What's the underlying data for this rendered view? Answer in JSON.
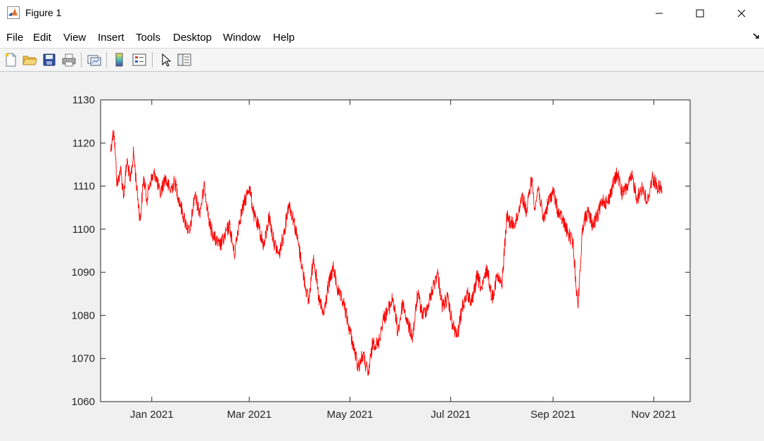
{
  "window": {
    "title": "Figure 1",
    "controls": [
      "minimize",
      "maximize",
      "close"
    ]
  },
  "menu": {
    "items": [
      "File",
      "Edit",
      "View",
      "Insert",
      "Tools",
      "Desktop",
      "Window",
      "Help"
    ]
  },
  "toolbar": {
    "buttons": [
      "new-figure-icon",
      "open-file-icon",
      "save-icon",
      "print-icon",
      "link-plot-icon",
      "colorbar-icon",
      "legend-icon",
      "pointer-icon",
      "property-inspector-icon"
    ]
  },
  "chart_data": {
    "type": "line",
    "title": "",
    "xlabel": "",
    "ylabel": "",
    "line_color": "#ff0000",
    "grid": false,
    "xlim": [
      "2020-12-01",
      "2021-11-23"
    ],
    "ylim": [
      1060,
      1130
    ],
    "x_ticks": [
      {
        "date": "2021-01-01",
        "label": "Jan 2021"
      },
      {
        "date": "2021-03-01",
        "label": "Mar 2021"
      },
      {
        "date": "2021-05-01",
        "label": "May 2021"
      },
      {
        "date": "2021-07-01",
        "label": "Jul 2021"
      },
      {
        "date": "2021-09-01",
        "label": "Sep 2021"
      },
      {
        "date": "2021-11-01",
        "label": "Nov 2021"
      }
    ],
    "y_ticks": [
      1060,
      1070,
      1080,
      1090,
      1100,
      1110,
      1120,
      1130
    ],
    "series": [
      {
        "x": [
          "2020-12-07",
          "2020-12-08",
          "2020-12-09",
          "2020-12-10",
          "2020-12-11",
          "2020-12-13",
          "2020-12-15",
          "2020-12-17",
          "2020-12-19",
          "2020-12-21",
          "2020-12-23",
          "2020-12-25",
          "2020-12-27",
          "2020-12-29",
          "2020-12-31",
          "2021-01-03",
          "2021-01-06",
          "2021-01-09",
          "2021-01-12",
          "2021-01-15",
          "2021-01-18",
          "2021-01-21",
          "2021-01-24",
          "2021-01-27",
          "2021-01-30",
          "2021-02-02",
          "2021-02-05",
          "2021-02-08",
          "2021-02-11",
          "2021-02-14",
          "2021-02-17",
          "2021-02-20",
          "2021-02-23",
          "2021-02-26",
          "2021-03-01",
          "2021-03-04",
          "2021-03-07",
          "2021-03-10",
          "2021-03-13",
          "2021-03-16",
          "2021-03-19",
          "2021-03-22",
          "2021-03-25",
          "2021-03-28",
          "2021-03-31",
          "2021-04-03",
          "2021-04-06",
          "2021-04-09",
          "2021-04-12",
          "2021-04-15",
          "2021-04-18",
          "2021-04-21",
          "2021-04-24",
          "2021-04-27",
          "2021-04-30",
          "2021-05-03",
          "2021-05-06",
          "2021-05-09",
          "2021-05-12",
          "2021-05-15",
          "2021-05-18",
          "2021-05-21",
          "2021-05-24",
          "2021-05-27",
          "2021-05-30",
          "2021-06-02",
          "2021-06-05",
          "2021-06-08",
          "2021-06-11",
          "2021-06-14",
          "2021-06-17",
          "2021-06-20",
          "2021-06-23",
          "2021-06-26",
          "2021-06-29",
          "2021-07-02",
          "2021-07-05",
          "2021-07-08",
          "2021-07-11",
          "2021-07-14",
          "2021-07-17",
          "2021-07-20",
          "2021-07-23",
          "2021-07-26",
          "2021-07-29",
          "2021-08-01",
          "2021-08-04",
          "2021-08-07",
          "2021-08-10",
          "2021-08-13",
          "2021-08-16",
          "2021-08-19",
          "2021-08-21",
          "2021-08-22",
          "2021-08-23",
          "2021-08-26",
          "2021-08-29",
          "2021-09-01",
          "2021-09-04",
          "2021-09-07",
          "2021-09-10",
          "2021-09-13",
          "2021-09-16",
          "2021-09-19",
          "2021-09-22",
          "2021-09-25",
          "2021-09-28",
          "2021-10-01",
          "2021-10-04",
          "2021-10-07",
          "2021-10-10",
          "2021-10-13",
          "2021-10-16",
          "2021-10-19",
          "2021-10-22",
          "2021-10-25",
          "2021-10-28",
          "2021-10-31",
          "2021-11-03",
          "2021-11-06"
        ],
        "y": [
          1118,
          1121,
          1123,
          1117,
          1110,
          1114,
          1108,
          1116,
          1111,
          1118,
          1109,
          1102,
          1112,
          1107,
          1111,
          1113,
          1108,
          1112,
          1109,
          1111,
          1106,
          1102,
          1099,
          1108,
          1104,
          1110,
          1101,
          1098,
          1096,
          1098,
          1101,
          1094,
          1102,
          1106,
          1110,
          1103,
          1100,
          1096,
          1103,
          1097,
          1094,
          1099,
          1106,
          1102,
          1096,
          1089,
          1083,
          1094,
          1084,
          1080,
          1087,
          1091,
          1085,
          1083,
          1078,
          1073,
          1068,
          1071,
          1066,
          1074,
          1073,
          1079,
          1081,
          1084,
          1076,
          1083,
          1078,
          1075,
          1085,
          1080,
          1082,
          1086,
          1090,
          1082,
          1084,
          1078,
          1075,
          1082,
          1085,
          1083,
          1089,
          1086,
          1091,
          1084,
          1089,
          1087,
          1103,
          1101,
          1102,
          1108,
          1104,
          1112,
          1105,
          1107,
          1110,
          1102,
          1106,
          1109,
          1104,
          1102,
          1099,
          1097,
          1082,
          1101,
          1104,
          1101,
          1103,
          1107,
          1106,
          1110,
          1113,
          1108,
          1110,
          1112,
          1107,
          1110,
          1106,
          1112,
          1110,
          1109
        ]
      }
    ]
  }
}
